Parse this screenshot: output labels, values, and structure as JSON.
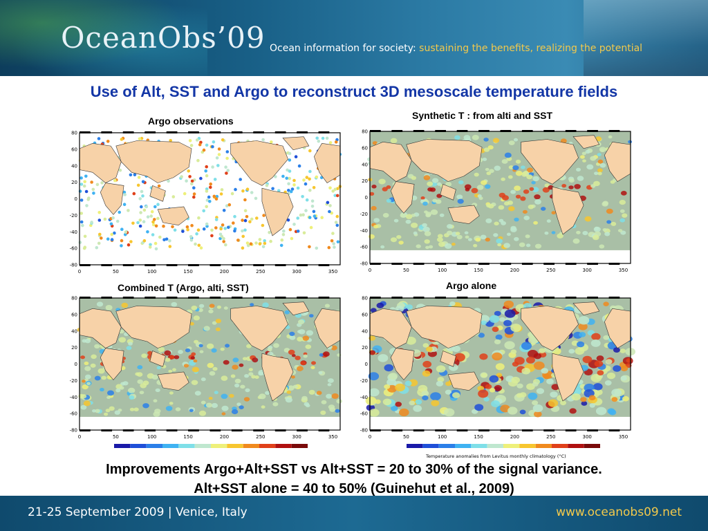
{
  "header": {
    "logo": "OceanObs’09",
    "tagline_prefix": "Ocean information for society:",
    "tagline_accent": "sustaining the benefits, realizing the potential"
  },
  "title": "Use of Alt, SST and Argo to reconstruct 3D mesoscale temperature fields",
  "panels": [
    {
      "label": "Argo observations"
    },
    {
      "label": "Synthetic T : from alti and SST"
    },
    {
      "label": "Combined T (Argo, alti, SST)"
    },
    {
      "label": "Argo alone"
    }
  ],
  "axes": {
    "y_ticks": [
      "80",
      "60",
      "40",
      "20",
      "0",
      "-20",
      "-40",
      "-60",
      "-80"
    ],
    "x_ticks": [
      "0",
      "50",
      "100",
      "150",
      "200",
      "250",
      "300",
      "350"
    ]
  },
  "colorbar": {
    "colors": [
      "#1a1aa8",
      "#1f4fd8",
      "#2b7fe8",
      "#3fb2f2",
      "#7fdfe8",
      "#bfe7cf",
      "#eef07a",
      "#f7c62f",
      "#f08a1e",
      "#e0401a",
      "#b01010",
      "#7a0a0a"
    ],
    "caption": "Temperature anomalies from Levitus monthly climatology (°C)"
  },
  "colors": {
    "title_blue": "#1336a6",
    "land": "#f7d2a8",
    "ocean_gray": "#a9bfa6"
  },
  "conclusion": {
    "line1": "Improvements Argo+Alt+SST vs Alt+SST = 20 to 30% of the signal variance.",
    "line2": "Alt+SST alone = 40 to 50%  (Guinehut et al., 2009)"
  },
  "footer": {
    "date_venue": "21-25 September 2009 | Venice, Italy",
    "url": "www.oceanobs09.net"
  }
}
